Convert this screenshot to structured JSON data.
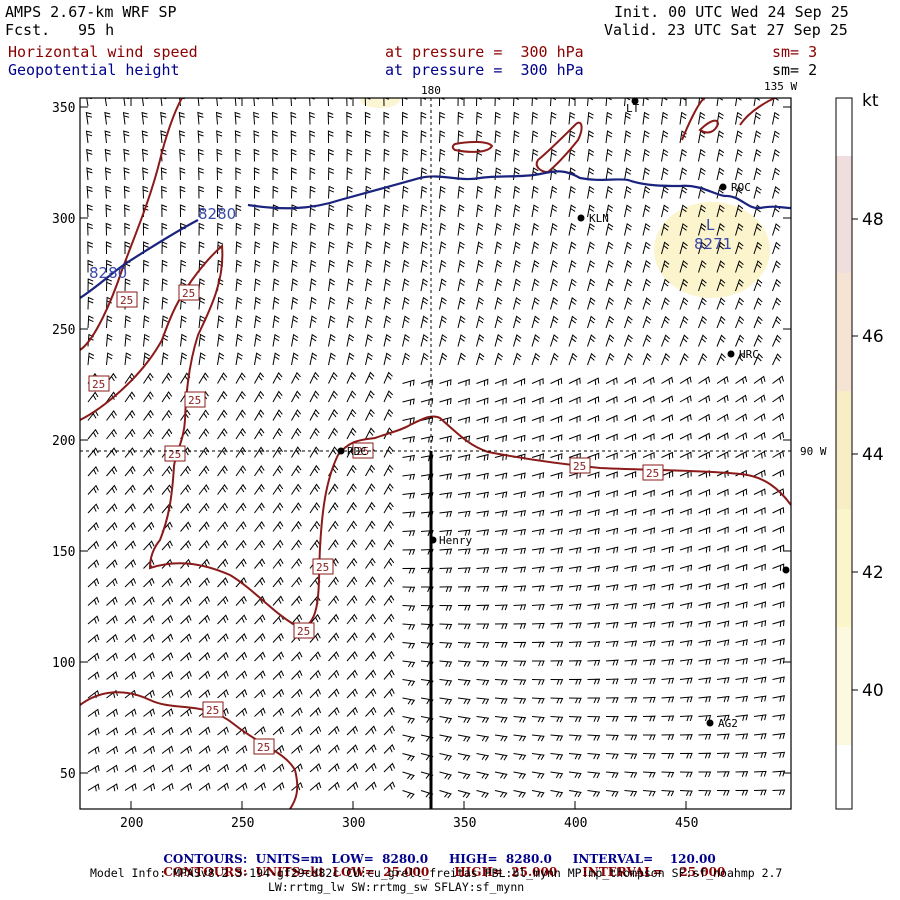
{
  "header": {
    "model": "AMPS 2.67-km WRF SP",
    "fcst_label": "Fcst.",
    "fcst_value": "95 h",
    "init": "Init. 00 UTC Wed 24 Sep 25",
    "valid": "Valid. 23 UTC Sat 27 Sep 25",
    "field1": "Horizontal wind speed",
    "field2": "Geopotential height",
    "pressure1": "at pressure =  300 hPa",
    "pressure2": "at pressure =  300 hPa",
    "sm1": "sm= 3",
    "sm2": "sm= 2"
  },
  "map": {
    "top_label_180": "180",
    "top_label_135w": "135 W",
    "right_label_90w": "90 W",
    "x_ticks": [
      "200",
      "250",
      "300",
      "350",
      "400",
      "450"
    ],
    "y_ticks": [
      "350",
      "300",
      "250",
      "200",
      "150",
      "100",
      "50"
    ],
    "stations": [
      {
        "name": "ROC"
      },
      {
        "name": "KLN"
      },
      {
        "name": "HRC"
      },
      {
        "name": "Henry"
      },
      {
        "name": "AG2"
      },
      {
        "name": "LT"
      },
      {
        "name": "RDC"
      }
    ],
    "height_labels": [
      "8280",
      "8280",
      "8271"
    ],
    "low_marker": "L",
    "speed_labels": [
      "25",
      "25",
      "25",
      "25",
      "25",
      "25",
      "25",
      "25",
      "25",
      "25",
      "25"
    ]
  },
  "colorbar": {
    "unit": "kt",
    "labels": [
      "48",
      "46",
      "44",
      "42",
      "40"
    ],
    "colors": [
      "#f0dede",
      "#f5e4d4",
      "#f7eec6",
      "#fbf5cc",
      "#fdf9e0"
    ]
  },
  "footer": {
    "c1_title": "CONTOURS:",
    "c1_units": "UNITS=m",
    "c1_low": "LOW=  8280.0",
    "c1_high": "HIGH=  8280.0",
    "c1_interval": "INTERVAL=    120.00",
    "c2_title": "CONTOURS:",
    "c2_units": "UNITS=kt",
    "c2_low": "LOW=  25.000",
    "c2_high": "HIGH=  25.000",
    "c2_interval": "INTERVAL=    25.000",
    "model_info_1": "Model Info: MPASv8.2.3-194-gf29cd82c CU:cu_grell_freitas PBL:bl_mynn MP:mp_thompson SF:sf_noahmp 2.7",
    "model_info_2": "LW:rrtmg_lw SW:rrtmg_sw SFLAY:sf_mynn"
  },
  "colors": {
    "speed_contour": "#8b1a1a",
    "height_contour": "#1a237e",
    "highlight_blob": "#fbf3c8"
  }
}
